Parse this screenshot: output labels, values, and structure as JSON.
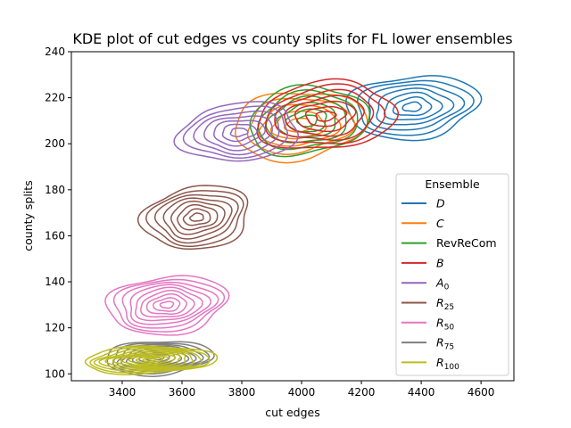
{
  "chart_data": {
    "type": "kde_contour",
    "title": "KDE plot of cut edges vs county splits for FL lower ensembles",
    "xlabel": "cut edges",
    "ylabel": "county splits",
    "xlim": [
      3230,
      4710
    ],
    "ylim": [
      97,
      240
    ],
    "xticks": [
      3400,
      3600,
      3800,
      4000,
      4200,
      4400,
      4600
    ],
    "yticks": [
      100,
      120,
      140,
      160,
      180,
      200,
      220,
      240
    ],
    "grid": false,
    "legend": {
      "title": "Ensemble",
      "placement": "lower-right"
    },
    "series": [
      {
        "name": "D",
        "label_main": "D",
        "label_sub": "",
        "italic": true,
        "color": "#1f77b4",
        "center": [
          4370,
          216
        ],
        "spread": [
          105,
          6.5
        ],
        "levels": 7
      },
      {
        "name": "C",
        "label_main": "C",
        "label_sub": "",
        "italic": true,
        "color": "#ff7f0e",
        "center": [
          3990,
          208
        ],
        "spread": [
          105,
          7
        ],
        "levels": 5
      },
      {
        "name": "RevReCom",
        "label_main": "RevReCom",
        "label_sub": "",
        "italic": false,
        "color": "#2ca02c",
        "center": [
          4020,
          210
        ],
        "spread": [
          95,
          7
        ],
        "levels": 6
      },
      {
        "name": "B",
        "label_main": "B",
        "label_sub": "",
        "italic": true,
        "color": "#d62728",
        "center": [
          4080,
          212
        ],
        "spread": [
          110,
          7
        ],
        "levels": 7
      },
      {
        "name": "A_0",
        "label_main": "A",
        "label_sub": "0",
        "italic": true,
        "color": "#9467bd",
        "center": [
          3790,
          205
        ],
        "spread": [
          95,
          6
        ],
        "levels": 7
      },
      {
        "name": "R_25",
        "label_main": "R",
        "label_sub": "25",
        "italic": true,
        "color": "#8c564b",
        "center": [
          3650,
          168
        ],
        "spread": [
          85,
          6.5
        ],
        "levels": 8
      },
      {
        "name": "R_50",
        "label_main": "R",
        "label_sub": "50",
        "italic": true,
        "color": "#e377c2",
        "center": [
          3550,
          130
        ],
        "spread": [
          95,
          6
        ],
        "levels": 9
      },
      {
        "name": "R_75",
        "label_main": "R",
        "label_sub": "75",
        "italic": true,
        "color": "#7f7f7f",
        "center": [
          3520,
          107
        ],
        "spread": [
          85,
          3.5
        ],
        "levels": 9
      },
      {
        "name": "R_100",
        "label_main": "R",
        "label_sub": "100",
        "italic": true,
        "color": "#bcbd22",
        "center": [
          3490,
          106
        ],
        "spread": [
          105,
          2.8
        ],
        "levels": 10
      }
    ]
  }
}
